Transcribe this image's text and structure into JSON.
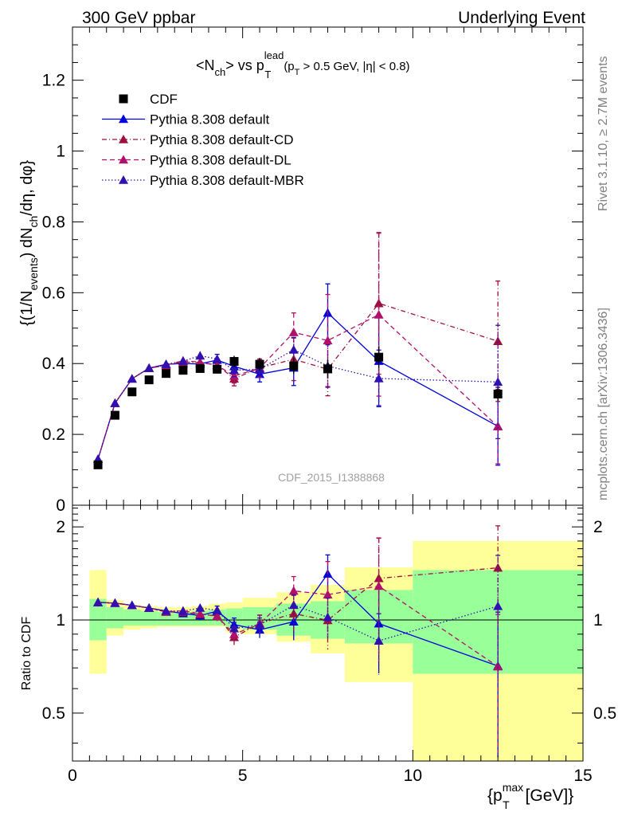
{
  "header": {
    "left": "300 GeV ppbar",
    "right": "Underlying Event"
  },
  "side_text": {
    "top": "Rivet 3.1.10, ≥ 2.7M events",
    "bottom": "mcplots.cern.ch [arXiv:1306.3436]"
  },
  "watermark": "CDF_2015_I1388868",
  "plot_title": {
    "main": "<N",
    "sub1": "ch",
    "mid": "> vs p",
    "sup": "lead",
    "sub2": "T",
    "cond_a": "(p",
    "cond_sub": "T",
    "cond_b": " > 0.5 GeV, |η| < 0.8)"
  },
  "ylabel_main": {
    "a": "{(1/N",
    "sub1": "events",
    "b": ") dN",
    "sub2": "ch",
    "c": "/dη, dφ}"
  },
  "ylabel_ratio": "Ratio to CDF",
  "xlabel": {
    "a": "{p",
    "sup": "max",
    "sub": "T",
    "b": " [GeV]}"
  },
  "chart_data": {
    "type": "line",
    "x_range": [
      0,
      15
    ],
    "main": {
      "ylim": [
        0,
        1.35
      ],
      "y_ticks": [
        "0",
        "0.2",
        "0.4",
        "0.6",
        "0.8",
        "1",
        "1.2"
      ]
    },
    "ratio": {
      "scale": "log",
      "ylim": [
        0.35,
        2.35
      ],
      "y_ticks": [
        "0.5",
        "1",
        "2"
      ]
    },
    "x_ticks": [
      "0",
      "5",
      "10",
      "15"
    ],
    "legend": {
      "placement": "top-left",
      "entries": [
        "CDF",
        "Pythia 8.308 default",
        "Pythia 8.308 default-CD",
        "Pythia 8.308 default-DL",
        "Pythia 8.308 default-MBR"
      ]
    },
    "bins": [
      [
        0.5,
        1.0
      ],
      [
        1.0,
        1.5
      ],
      [
        1.5,
        2.0
      ],
      [
        2.0,
        2.5
      ],
      [
        2.5,
        3.0
      ],
      [
        3.0,
        3.5
      ],
      [
        3.5,
        4.0
      ],
      [
        4.0,
        4.5
      ],
      [
        4.5,
        5.0
      ],
      [
        5.0,
        6.0
      ],
      [
        6.0,
        7.0
      ],
      [
        7.0,
        8.0
      ],
      [
        8.0,
        10.0
      ],
      [
        10.0,
        15.0
      ]
    ],
    "x": [
      0.75,
      1.25,
      1.75,
      2.25,
      2.75,
      3.25,
      3.75,
      4.25,
      4.75,
      5.5,
      6.5,
      7.5,
      9.0,
      12.5
    ],
    "data": {
      "name": "CDF",
      "y": [
        0.114,
        0.254,
        0.32,
        0.354,
        0.372,
        0.381,
        0.386,
        0.384,
        0.406,
        0.398,
        0.393,
        0.385,
        0.418,
        0.314
      ],
      "err": [
        0.006,
        0.008,
        0.009,
        0.01,
        0.01,
        0.01,
        0.012,
        0.012,
        0.016,
        0.018,
        0.022,
        0.026,
        0.03,
        0.02
      ],
      "band_inner": [
        [
          0.86,
          1.17
        ],
        [
          0.94,
          1.1
        ],
        [
          0.96,
          1.08
        ],
        [
          0.96,
          1.07
        ],
        [
          0.96,
          1.06
        ],
        [
          0.96,
          1.06
        ],
        [
          0.96,
          1.07
        ],
        [
          0.96,
          1.08
        ],
        [
          0.95,
          1.09
        ],
        [
          0.93,
          1.1
        ],
        [
          0.89,
          1.13
        ],
        [
          0.87,
          1.15
        ],
        [
          0.84,
          1.25
        ],
        [
          0.67,
          1.45
        ]
      ],
      "band_outer": [
        [
          0.67,
          1.45
        ],
        [
          0.89,
          1.16
        ],
        [
          0.93,
          1.12
        ],
        [
          0.94,
          1.11
        ],
        [
          0.95,
          1.1
        ],
        [
          0.95,
          1.1
        ],
        [
          0.95,
          1.11
        ],
        [
          0.95,
          1.13
        ],
        [
          0.91,
          1.14
        ],
        [
          0.9,
          1.18
        ],
        [
          0.85,
          1.23
        ],
        [
          0.78,
          1.3
        ],
        [
          0.63,
          1.48
        ],
        [
          0.33,
          1.8
        ]
      ]
    },
    "series": [
      {
        "name": "Pythia 8.308 default",
        "color": "#0000dd",
        "dash": "solid",
        "y": [
          0.13,
          0.288,
          0.357,
          0.387,
          0.398,
          0.4,
          0.399,
          0.41,
          0.392,
          0.37,
          0.388,
          0.543,
          0.407,
          0.223
        ],
        "err": [
          0.004,
          0.005,
          0.006,
          0.007,
          0.008,
          0.01,
          0.012,
          0.016,
          0.02,
          0.022,
          0.05,
          0.082,
          0.126,
          0.11
        ]
      },
      {
        "name": "Pythia 8.308 default-CD",
        "color": "#9c1040",
        "dash": "6,3,1,3",
        "y": [
          0.13,
          0.288,
          0.357,
          0.387,
          0.395,
          0.404,
          0.403,
          0.396,
          0.357,
          0.388,
          0.412,
          0.384,
          0.57,
          0.463
        ],
        "err": [
          0.004,
          0.005,
          0.006,
          0.007,
          0.008,
          0.01,
          0.012,
          0.014,
          0.02,
          0.025,
          0.06,
          0.075,
          0.2,
          0.17
        ]
      },
      {
        "name": "Pythia 8.308 default-DL",
        "color": "#b0106a",
        "dash": "6,4",
        "y": [
          0.13,
          0.288,
          0.357,
          0.387,
          0.395,
          0.408,
          0.404,
          0.395,
          0.365,
          0.387,
          0.488,
          0.465,
          0.538,
          0.222
        ],
        "err": [
          0.004,
          0.005,
          0.006,
          0.007,
          0.008,
          0.01,
          0.012,
          0.014,
          0.02,
          0.025,
          0.055,
          0.13,
          0.23,
          0.105
        ]
      },
      {
        "name": "Pythia 8.308 default-MBR",
        "color": "#3010b0",
        "dash": "1.5,2.5",
        "y": [
          0.13,
          0.288,
          0.357,
          0.387,
          0.398,
          0.407,
          0.422,
          0.413,
          0.381,
          0.384,
          0.439,
          0.393,
          0.358,
          0.348
        ],
        "err": [
          0.004,
          0.005,
          0.006,
          0.007,
          0.008,
          0.01,
          0.012,
          0.014,
          0.018,
          0.02,
          0.035,
          0.06,
          0.08,
          0.16
        ]
      }
    ]
  }
}
